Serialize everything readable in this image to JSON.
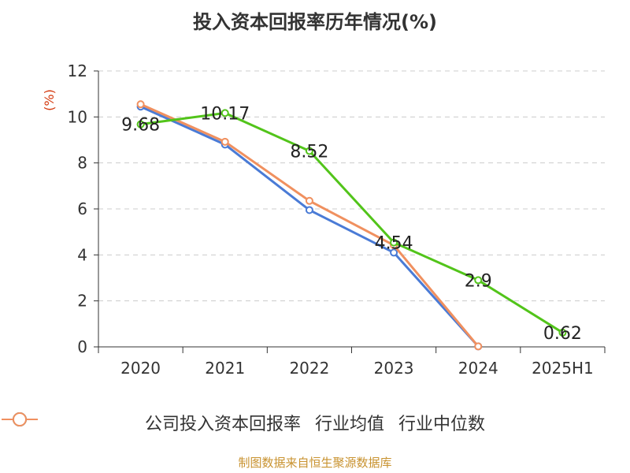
{
  "chart_data": {
    "type": "line",
    "title": "投入资本回报率历年情况(%)",
    "ylabel": "(%)",
    "xlabel": "",
    "categories": [
      "2020",
      "2021",
      "2022",
      "2023",
      "2024",
      "2025H1"
    ],
    "ylim": [
      0,
      12
    ],
    "yticks": [
      0,
      2,
      4,
      6,
      8,
      10,
      12
    ],
    "grid": true,
    "legend_position": "bottom",
    "series": [
      {
        "name": "公司投入资本回报率",
        "color": "#52c41a",
        "values": [
          9.68,
          10.17,
          8.52,
          4.54,
          2.9,
          0.62
        ],
        "labels": [
          "9.68",
          "10.17",
          "8.52",
          "4.54",
          "2.9",
          "0.62"
        ]
      },
      {
        "name": "行业均值",
        "color": "#4a7bd6",
        "values": [
          10.45,
          8.8,
          5.95,
          4.1,
          0.02,
          null
        ]
      },
      {
        "name": "行业中位数",
        "color": "#f0905f",
        "values": [
          10.55,
          8.92,
          6.35,
          4.42,
          0.02,
          null
        ]
      }
    ],
    "source": "制图数据来自恒生聚源数据库"
  }
}
